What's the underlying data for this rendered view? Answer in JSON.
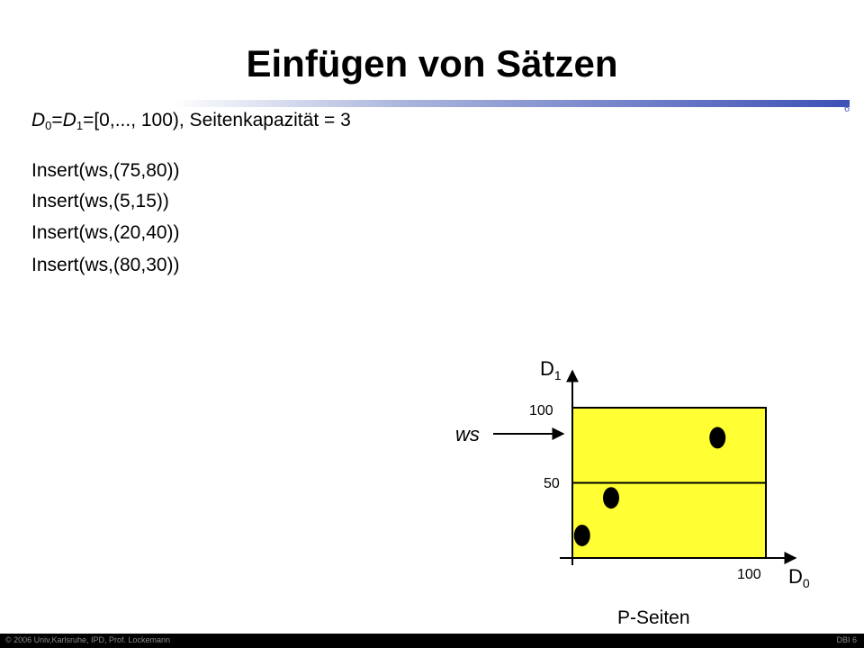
{
  "slide": {
    "title": "Einfügen von Sätzen",
    "number": "6"
  },
  "domain": {
    "d0_letter": "D",
    "d0_sub": "0",
    "d1_letter": "D",
    "d1_sub": "1",
    "range_text": "=[0,..., 100), Seitenkapazität = 3"
  },
  "inserts": [
    "Insert(ws,(75,80))",
    "Insert(ws,(5,15))",
    "Insert(ws,(20,40))",
    "Insert(ws,(80,30))"
  ],
  "diagram": {
    "y_axis_letter": "D",
    "y_axis_sub": "1",
    "x_axis_letter": "D",
    "x_axis_sub": "0",
    "tick_y_top": "100",
    "tick_y_mid": "50",
    "tick_x_end": "100",
    "pointer_label": "ws",
    "caption": "P-Seiten",
    "page_fill_color": "#ffff33",
    "points": [
      {
        "d0": 75,
        "d1": 80
      },
      {
        "d0": 5,
        "d1": 15
      },
      {
        "d0": 20,
        "d1": 40
      }
    ],
    "split_d1": 50
  },
  "footer": {
    "left": "© 2006 Univ,Karlsruhe, IPD, Prof. Lockemann",
    "right": "DBI 6"
  }
}
